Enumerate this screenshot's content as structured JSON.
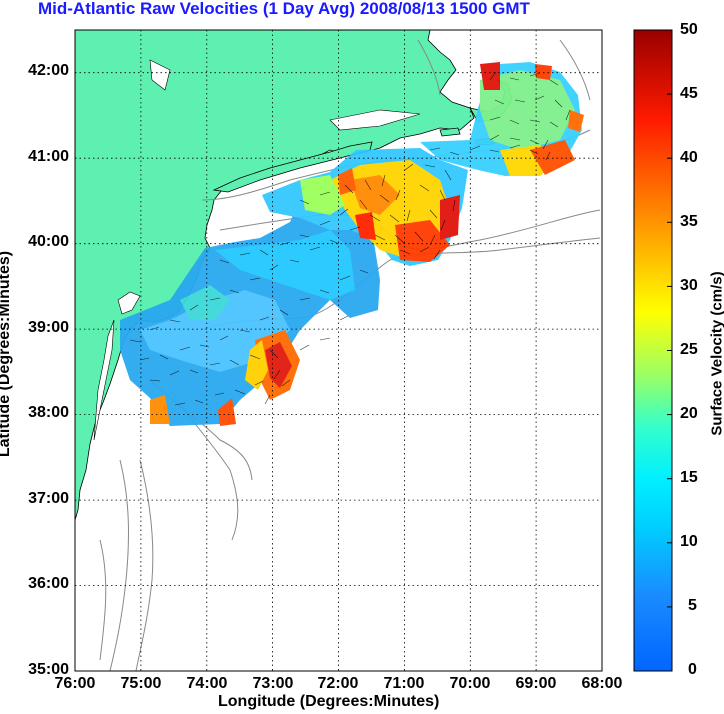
{
  "title": "Mid-Atlantic Raw Velocities (1 Day Avg) 2008/08/13 1500 GMT",
  "xlabel": "Longitude (Degrees:Minutes)",
  "ylabel": "Latitude (Degrees:Minutes)",
  "colorbar": {
    "label": "Surface Velocity (cm/s)",
    "ticks": [
      "50",
      "45",
      "40",
      "35",
      "30",
      "25",
      "20",
      "15",
      "10",
      "5",
      "0"
    ],
    "range": [
      0,
      50
    ],
    "colormap": "jet"
  },
  "map": {
    "lon_ticks": [
      "76:00",
      "75:00",
      "74:00",
      "73:00",
      "72:00",
      "71:00",
      "70:00",
      "69:00",
      "68:00"
    ],
    "lat_ticks": [
      "42:00",
      "41:00",
      "40:00",
      "39:00",
      "38:00",
      "37:00",
      "36:00",
      "35:00"
    ],
    "lon_range": [
      -76,
      -68
    ],
    "lat_range": [
      35,
      42.5
    ],
    "land_color": "#5ef0b0",
    "grid": "dotted"
  }
}
